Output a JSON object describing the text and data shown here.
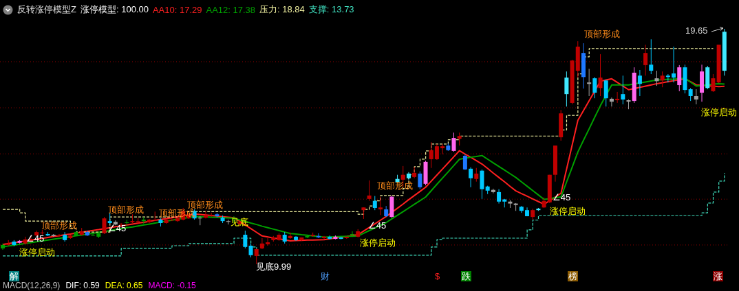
{
  "chart_data": {
    "type": "candlestick",
    "title": "反转涨停模型Z",
    "legend": "top left",
    "grid": "y",
    "tick_labels": false,
    "yticks": [
      {
        "value": 10.78,
        "label": null
      },
      {
        "value": 12.66,
        "label": null
      },
      {
        "value": 14.52,
        "label": null
      },
      {
        "value": 16.41,
        "label": null
      },
      {
        "value": 18.3,
        "label": null
      }
    ],
    "categories": [
      null,
      null,
      null,
      null,
      null,
      null,
      null,
      null,
      null,
      null,
      null,
      null,
      null,
      null,
      null,
      null,
      null,
      null,
      null,
      null,
      null,
      null,
      null,
      null,
      null,
      null,
      null,
      null,
      null,
      null,
      null,
      null,
      null,
      null,
      null,
      null,
      null,
      null,
      null,
      null,
      null,
      null,
      null,
      null,
      null,
      null,
      null,
      null,
      null,
      null,
      null,
      null,
      null,
      null,
      null,
      null,
      null,
      null,
      null,
      null,
      null,
      null,
      null,
      null,
      null,
      null,
      null,
      null,
      null,
      null,
      null,
      null,
      null,
      null,
      null,
      null,
      null,
      null,
      null,
      null,
      null,
      null,
      null,
      null,
      null,
      null,
      null,
      null,
      null,
      null,
      null,
      null,
      null,
      null,
      null,
      null,
      null,
      null,
      null,
      null,
      null,
      null,
      null,
      null,
      null,
      null,
      null,
      null,
      null,
      null,
      null,
      null,
      null,
      null,
      null,
      null,
      null,
      null,
      null,
      null,
      null,
      null,
      null,
      null,
      null,
      null,
      null,
      null,
      null
    ],
    "ohlc": [
      [
        10.78,
        10.84,
        10.58,
        10.64
      ],
      [
        10.78,
        10.98,
        10.75,
        10.84
      ],
      [
        10.92,
        10.98,
        10.73,
        10.78
      ],
      [
        10.87,
        10.98,
        10.84,
        10.95
      ],
      [
        10.84,
        11.12,
        10.81,
        11.01
      ],
      [
        10.92,
        11.17,
        10.89,
        11.03
      ],
      [
        11.17,
        11.37,
        11.15,
        11.31
      ],
      [
        11.26,
        11.4,
        11.2,
        11.29
      ],
      [
        11.23,
        11.31,
        11.15,
        11.17
      ],
      [
        11.2,
        11.23,
        11.12,
        11.15
      ],
      [
        11.15,
        11.23,
        11.12,
        11.17
      ],
      [
        11.2,
        11.31,
        10.92,
        10.98
      ],
      [
        11.06,
        11.2,
        11.03,
        11.17
      ],
      [
        11.31,
        11.37,
        11.15,
        11.17
      ],
      [
        11.2,
        11.48,
        11.17,
        11.34
      ],
      [
        11.31,
        11.37,
        11.15,
        11.17
      ],
      [
        11.2,
        11.26,
        11.15,
        11.17
      ],
      [
        11.26,
        11.31,
        11.06,
        11.12
      ],
      [
        11.26,
        11.93,
        11.23,
        11.87
      ],
      [
        11.76,
        12.1,
        11.65,
        11.68
      ],
      [
        11.73,
        11.79,
        11.59,
        11.62
      ],
      [
        11.62,
        11.68,
        11.59,
        11.65
      ],
      [
        11.71,
        11.82,
        11.54,
        11.68
      ],
      [
        11.71,
        12.04,
        11.68,
        11.76
      ],
      [
        11.73,
        11.9,
        11.62,
        11.76
      ],
      [
        11.82,
        11.93,
        11.65,
        11.76
      ],
      [
        11.71,
        11.85,
        11.68,
        11.82
      ],
      [
        11.79,
        12.15,
        11.76,
        11.82
      ],
      [
        11.82,
        11.87,
        11.54,
        11.68
      ],
      [
        11.68,
        11.85,
        11.65,
        11.82
      ],
      [
        11.79,
        11.87,
        11.76,
        11.82
      ],
      [
        11.76,
        11.96,
        11.73,
        11.9
      ],
      [
        11.82,
        12.3,
        11.79,
        12.18
      ],
      [
        11.87,
        12.1,
        11.85,
        12.01
      ],
      [
        12.18,
        12.24,
        11.82,
        11.87
      ],
      [
        11.9,
        11.96,
        11.59,
        11.87
      ],
      [
        11.9,
        12.18,
        11.87,
        12.01
      ],
      [
        11.99,
        12.1,
        11.93,
        12.01
      ],
      [
        12.04,
        12.1,
        11.9,
        11.96
      ],
      [
        11.9,
        11.99,
        11.68,
        11.76
      ],
      [
        11.76,
        11.82,
        11.62,
        11.73
      ],
      [
        11.82,
        11.96,
        11.68,
        11.79
      ],
      [
        11.65,
        11.76,
        11.54,
        11.71
      ],
      [
        11.2,
        11.37,
        10.64,
        10.7
      ],
      [
        10.75,
        10.84,
        10.27,
        10.36
      ],
      [
        10.33,
        10.64,
        9.99,
        10.61
      ],
      [
        10.64,
        11.06,
        10.61,
        10.84
      ],
      [
        10.81,
        11.06,
        10.75,
        10.89
      ],
      [
        10.98,
        11.15,
        10.92,
        11.09
      ],
      [
        10.98,
        11.26,
        10.95,
        11.2
      ],
      [
        11.2,
        11.31,
        10.84,
        10.92
      ],
      [
        11.06,
        11.29,
        11.03,
        11.15
      ],
      [
        11.12,
        11.15,
        10.95,
        10.98
      ],
      [
        10.98,
        11.09,
        10.95,
        11.09
      ],
      [
        11.15,
        11.2,
        11.06,
        11.09
      ],
      [
        11.15,
        11.29,
        11.12,
        11.2
      ],
      [
        11.15,
        11.26,
        11.06,
        11.09
      ],
      [
        11.06,
        11.15,
        11.03,
        11.12
      ],
      [
        11.12,
        11.17,
        11.01,
        11.03
      ],
      [
        11.03,
        11.17,
        11.01,
        11.12
      ],
      [
        11.09,
        11.12,
        11.01,
        11.03
      ],
      [
        11.06,
        11.12,
        11.03,
        11.12
      ],
      [
        11.23,
        11.34,
        11.12,
        11.2
      ],
      [
        11.12,
        11.43,
        11.09,
        11.34
      ],
      [
        12.21,
        12.32,
        11.85,
        12.32
      ],
      [
        12.67,
        13.43,
        12.59,
        12.81
      ],
      [
        12.59,
        12.79,
        12.21,
        12.3
      ],
      [
        12.24,
        12.76,
        12.01,
        12.32
      ],
      [
        12.24,
        12.38,
        11.93,
        11.96
      ],
      [
        11.93,
        12.81,
        11.9,
        12.76
      ],
      [
        13.35,
        13.66,
        13.32,
        13.49
      ],
      [
        13.46,
        14.02,
        13.18,
        13.66
      ],
      [
        13.52,
        13.77,
        13.46,
        13.71
      ],
      [
        13.57,
        13.99,
        13.52,
        13.74
      ],
      [
        13.71,
        13.8,
        13.07,
        13.15
      ],
      [
        13.29,
        14.24,
        13.23,
        14.19
      ],
      [
        14.3,
        15.0,
        13.94,
        14.67
      ],
      [
        14.3,
        14.92,
        14.27,
        14.83
      ],
      [
        14.75,
        14.92,
        14.5,
        14.83
      ],
      [
        14.86,
        14.95,
        14.64,
        14.67
      ],
      [
        14.64,
        15.39,
        14.61,
        15.17
      ],
      [
        15.14,
        15.39,
        14.86,
        15.25
      ],
      [
        14.44,
        14.5,
        13.86,
        13.88
      ],
      [
        13.91,
        13.97,
        13.15,
        13.52
      ],
      [
        13.49,
        13.94,
        13.38,
        13.71
      ],
      [
        13.83,
        13.88,
        12.67,
        13.07
      ],
      [
        13.18,
        13.21,
        12.87,
        13.01
      ],
      [
        13.04,
        13.09,
        12.9,
        12.95
      ],
      [
        12.95,
        13.07,
        12.48,
        12.56
      ],
      [
        12.65,
        12.67,
        12.32,
        12.56
      ],
      [
        12.56,
        12.62,
        12.3,
        12.48
      ],
      [
        12.48,
        12.5,
        12.18,
        12.42
      ],
      [
        12.35,
        12.38,
        12.1,
        12.18
      ],
      [
        12.21,
        12.32,
        11.96,
        11.96
      ],
      [
        11.93,
        12.27,
        11.82,
        12.21
      ],
      [
        12.21,
        12.3,
        12.18,
        12.27
      ],
      [
        12.32,
        12.73,
        12.3,
        12.59
      ],
      [
        12.53,
        13.66,
        12.5,
        13.66
      ],
      [
        13.66,
        14.86,
        13.38,
        14.86
      ],
      [
        15.2,
        16.32,
        15.06,
        16.18
      ],
      [
        16.97,
        17.9,
        16.46,
        17.65
      ],
      [
        16.61,
        18.38,
        16.55,
        18.35
      ],
      [
        17.93,
        19.14,
        17.65,
        18.92
      ],
      [
        18.66,
        19.06,
        17.2,
        17.67
      ],
      [
        17.45,
        18.01,
        16.89,
        17.39
      ],
      [
        17.62,
        17.67,
        16.8,
        17.03
      ],
      [
        17.22,
        18.61,
        16.89,
        17.65
      ],
      [
        17.53,
        17.56,
        16.46,
        16.8
      ],
      [
        16.78,
        16.83,
        16.46,
        16.66
      ],
      [
        16.72,
        17.06,
        16.61,
        16.78
      ],
      [
        16.97,
        17.73,
        16.55,
        16.75
      ],
      [
        16.72,
        16.75,
        16.35,
        16.66
      ],
      [
        16.69,
        18.07,
        16.61,
        17.85
      ],
      [
        17.73,
        17.96,
        16.89,
        17.39
      ],
      [
        18.16,
        19.0,
        17.73,
        18.66
      ],
      [
        18.18,
        19.22,
        17.79,
        17.93
      ],
      [
        17.62,
        17.93,
        17.31,
        17.5
      ],
      [
        17.53,
        17.9,
        17.25,
        17.73
      ],
      [
        17.73,
        17.79,
        17.45,
        17.67
      ],
      [
        17.82,
        18.92,
        17.45,
        17.65
      ],
      [
        17.34,
        18.16,
        17.09,
        18.07
      ],
      [
        18.07,
        18.18,
        17.0,
        17.14
      ],
      [
        17.17,
        17.22,
        16.69,
        16.89
      ],
      [
        16.89,
        17.17,
        16.55,
        16.75
      ],
      [
        17.03,
        18.18,
        16.66,
        17.9
      ],
      [
        17.22,
        18.13,
        17.17,
        18.07
      ],
      [
        17.09,
        17.79,
        17.06,
        17.62
      ],
      [
        17.45,
        19.0,
        17.42,
        19.0
      ],
      [
        17.93,
        19.65,
        17.73,
        19.53
      ]
    ],
    "colors": [
      "#00a000",
      "#c00000",
      "#00c8ff",
      "#ff66ee",
      "#c00000",
      "#c00000",
      "#c00000",
      "#c00000",
      "#00c8ff",
      "#a0a0a0",
      "#c00000",
      "#00c8ff",
      "#c00000",
      "#00a000",
      "#c00000",
      "#1e78ff",
      "#00a000",
      "#00a000",
      "#c00000",
      "#00c8ff",
      "#a0a0a0",
      "#c00000",
      "#00a000",
      "#c00000",
      "#c00000",
      "#00a000",
      "#c00000",
      "#c00000",
      "#00c8ff",
      "#c00000",
      "#c00000",
      "#c00000",
      "#c00000",
      "#c00000",
      "#00c8ff",
      "#a0a0a0",
      "#c00000",
      "#c00000",
      "#1e78ff",
      "#00c8ff",
      "#a0a0a0",
      "#00a000",
      "#c00000",
      "#00c8ff",
      "#00c8ff",
      "#c00000",
      "#c00000",
      "#c00000",
      "#c00000",
      "#c00000",
      "#00c8ff",
      "#c00000",
      "#00c8ff",
      "#c00000",
      "#00a000",
      "#c00000",
      "#1e78ff",
      "#c00000",
      "#00c8ff",
      "#ff66ee",
      "#00c8ff",
      "#c00000",
      "#00a000",
      "#c00000",
      "#c00000",
      "#c00000",
      "#00c8ff",
      "#c00000",
      "#1e78ff",
      "#ff66ee",
      "#40e8ff",
      "#c00000",
      "#40e8ff",
      "#c00000",
      "#1e78ff",
      "#ff66ee",
      "#c00000",
      "#c00000",
      "#c00000",
      "#1e78ff",
      "#ff66ee",
      "#c00000",
      "#1e78ff",
      "#00c8ff",
      "#c00000",
      "#00c8ff",
      "#00c8ff",
      "#a0a0a0",
      "#00c8ff",
      "#00c8ff",
      "#a0a0a0",
      "#a0a0a0",
      "#00c8ff",
      "#00c8ff",
      "#c00000",
      "#40e8ff",
      "#c00000",
      "#c00000",
      "#c00000",
      "#c00000",
      "#40e8ff",
      "#c00000",
      "#c00000",
      "#1e78ff",
      "#a0a0a0",
      "#00c8ff",
      "#c00000",
      "#00c8ff",
      "#a0a0a0",
      "#c00000",
      "#00c8ff",
      "#a0a0a0",
      "#ff66ee",
      "#00c8ff",
      "#c00000",
      "#00c8ff",
      "#a0a0a0",
      "#c00000",
      "#00c8ff",
      "#00c8ff",
      "#ff66ee",
      "#00c8ff",
      "#00c8ff",
      "#a0a0a0",
      "#ff66ee",
      "#40e8ff",
      "#c00000",
      "#c00000",
      "#40e8ff"
    ],
    "series": [
      {
        "name": "AA10: 17.29",
        "type": "line",
        "color": "#ff2020",
        "line_style": "solid",
        "values": [
          10.8,
          10.84,
          10.87,
          10.91,
          10.94,
          10.98,
          11.02,
          11.05,
          11.09,
          11.13,
          11.16,
          11.2,
          11.23,
          11.27,
          11.31,
          11.34,
          11.38,
          11.41,
          11.45,
          11.49,
          11.53,
          11.56,
          11.6,
          11.64,
          11.68,
          11.71,
          11.75,
          11.79,
          11.83,
          11.86,
          11.9,
          11.94,
          11.98,
          12.01,
          12.05,
          12.03,
          12.01,
          11.99,
          11.96,
          11.94,
          11.92,
          11.9,
          11.75,
          11.6,
          11.45,
          11.3,
          11.15,
          11.11,
          11.07,
          11.03,
          10.99,
          10.95,
          10.96,
          10.97,
          10.98,
          10.98,
          10.99,
          11.0,
          11.03,
          11.07,
          11.1,
          11.13,
          11.17,
          11.2,
          11.35,
          11.5,
          11.65,
          11.8,
          11.95,
          12.12,
          12.29,
          12.46,
          12.64,
          12.81,
          12.98,
          13.15,
          13.4,
          13.65,
          13.9,
          14.15,
          14.4,
          14.65,
          14.51,
          14.38,
          14.24,
          14.1,
          13.92,
          13.73,
          13.55,
          13.37,
          13.18,
          13.0,
          12.89,
          12.78,
          12.67,
          12.56,
          12.45,
          12.6,
          12.75,
          12.9,
          13.9,
          14.9,
          15.9,
          16.3,
          16.7,
          17.1,
          17.5,
          17.55,
          17.6,
          17.45,
          17.3,
          17.15,
          17.2,
          17.25,
          17.3,
          17.35,
          17.4,
          17.44,
          17.48,
          17.52,
          17.56,
          17.6,
          17.48,
          17.35,
          null,
          17.31,
          17.3,
          17.28,
          17.29
        ]
      },
      {
        "name": "AA12: 17.38",
        "type": "line",
        "color": "#00a000",
        "line_style": "solid",
        "values": [
          10.7,
          10.74,
          10.77,
          10.81,
          10.84,
          10.88,
          10.91,
          10.95,
          10.98,
          11.02,
          11.05,
          11.09,
          11.12,
          11.16,
          11.19,
          11.23,
          11.26,
          11.3,
          11.33,
          11.37,
          11.41,
          11.45,
          11.49,
          11.52,
          11.56,
          11.6,
          11.64,
          11.68,
          11.72,
          11.76,
          11.8,
          11.84,
          11.87,
          11.91,
          11.95,
          11.94,
          11.93,
          11.92,
          11.91,
          11.9,
          11.89,
          11.88,
          11.81,
          11.75,
          11.68,
          11.62,
          11.55,
          11.49,
          11.43,
          11.37,
          11.31,
          11.25,
          11.23,
          11.2,
          11.18,
          11.15,
          11.13,
          11.1,
          11.11,
          11.12,
          11.13,
          11.13,
          11.14,
          11.15,
          11.26,
          11.37,
          11.48,
          11.59,
          11.7,
          11.85,
          12.0,
          12.15,
          12.3,
          12.45,
          12.6,
          12.75,
          13.01,
          13.27,
          13.53,
          13.78,
          14.04,
          14.3,
          14.34,
          14.38,
          14.41,
          14.45,
          14.3,
          14.15,
          14.0,
          13.85,
          13.7,
          13.55,
          13.37,
          13.19,
          13.01,
          12.83,
          12.65,
          12.68,
          12.72,
          12.75,
          13.37,
          13.98,
          14.6,
          15.08,
          15.55,
          16.03,
          16.5,
          null,
          17.35,
          17.35,
          17.35,
          17.35,
          17.39,
          17.43,
          17.47,
          17.51,
          17.55,
          17.56,
          17.58,
          17.59,
          17.61,
          17.62,
          17.46,
          17.3,
          17.33,
          17.35,
          17.38,
          17.4,
          17.38
        ]
      },
      {
        "name": "压力: 18.84",
        "type": "step",
        "color": "#f0f0a0",
        "line_style": "dashed",
        "values": [
          12.24,
          12.24,
          12.24,
          12.1,
          11.76,
          11.76,
          11.76,
          11.76,
          11.76,
          11.76,
          11.76,
          11.76,
          11.45,
          11.31,
          11.31,
          11.31,
          11.31,
          11.31,
          11.31,
          11.93,
          11.93,
          11.93,
          11.93,
          11.93,
          11.93,
          11.93,
          11.93,
          11.93,
          11.93,
          11.93,
          11.93,
          11.93,
          12.15,
          12.15,
          12.15,
          12.15,
          12.15,
          12.15,
          12.15,
          12.15,
          12.15,
          12.15,
          12.15,
          12.15,
          12.15,
          12.15,
          12.15,
          12.15,
          12.15,
          12.15,
          12.15,
          12.15,
          12.15,
          12.15,
          12.15,
          12.15,
          12.15,
          12.15,
          12.15,
          12.15,
          12.15,
          12.15,
          12.15,
          12.04,
          12.24,
          12.38,
          12.59,
          12.81,
          12.81,
          12.81,
          12.81,
          13.1,
          13.66,
          13.99,
          14.3,
          14.64,
          14.92,
          14.92,
          14.92,
          15.1,
          15.1,
          15.25,
          15.25,
          15.25,
          15.25,
          15.25,
          15.25,
          15.25,
          15.25,
          15.25,
          15.25,
          15.25,
          15.25,
          15.25,
          15.25,
          15.25,
          15.25,
          15.25,
          15.25,
          15.5,
          16.1,
          null,
          17.8,
          18.5,
          18.84,
          18.84,
          18.84,
          18.84,
          18.84,
          18.84,
          18.84,
          18.84,
          18.84,
          18.84,
          18.84,
          18.84,
          18.84,
          18.84,
          18.84,
          18.84,
          18.84,
          18.84,
          18.84,
          18.84,
          18.84,
          18.84,
          18.84,
          null,
          null
        ]
      },
      {
        "name": "支撑: 13.73",
        "type": "step",
        "color": "#40e0c0",
        "line_style": "dashed",
        "values": [
          10.33,
          10.33,
          10.33,
          10.33,
          10.33,
          10.33,
          10.33,
          10.33,
          10.33,
          10.33,
          10.33,
          10.33,
          10.33,
          10.33,
          10.33,
          10.33,
          10.33,
          10.33,
          10.33,
          10.33,
          10.33,
          10.64,
          10.64,
          10.64,
          10.64,
          10.64,
          10.64,
          10.64,
          10.64,
          10.64,
          10.75,
          10.75,
          10.75,
          10.84,
          10.84,
          10.84,
          10.84,
          10.84,
          10.84,
          10.84,
          10.84,
          11.06,
          11.06,
          11.06,
          10.7,
          10.36,
          10.36,
          10.36,
          10.36,
          10.36,
          10.36,
          10.36,
          10.36,
          10.36,
          10.36,
          10.36,
          10.36,
          10.36,
          10.36,
          10.36,
          10.36,
          10.36,
          10.36,
          10.36,
          10.36,
          10.36,
          10.36,
          10.36,
          10.36,
          10.36,
          10.36,
          10.36,
          10.36,
          10.36,
          10.36,
          10.36,
          10.7,
          11.0,
          11.06,
          11.06,
          11.06,
          11.06,
          11.06,
          11.06,
          11.06,
          11.06,
          11.06,
          11.06,
          11.06,
          11.06,
          11.06,
          11.06,
          11.06,
          11.4,
          11.8,
          11.99,
          11.99,
          11.99,
          11.99,
          11.99,
          11.99,
          11.99,
          11.99,
          11.99,
          11.99,
          11.99,
          11.99,
          11.99,
          11.99,
          11.99,
          11.99,
          11.99,
          11.99,
          11.99,
          11.99,
          11.99,
          11.99,
          11.99,
          11.99,
          11.99,
          11.99,
          11.99,
          11.99,
          11.99,
          12.1,
          12.5,
          12.95,
          13.4,
          13.73
        ]
      }
    ],
    "annotations": [
      "涨停模型: 100.00",
      "顶部形成",
      "顶部形成",
      "顶部形成",
      "顶部形成",
      "顶部形成",
      "顶部形成",
      "涨停启动",
      "涨停启动",
      "涨停启动",
      "涨停启动",
      "∠45",
      "∠45",
      "∠45",
      "∠45",
      "见底",
      "见底",
      "9.99",
      "19.65",
      "MACD(12,26,9)",
      "DIF: 0.59",
      "DEA: 0.65",
      "MACD: -0.15",
      "解",
      "财",
      "$",
      "跌",
      "榜",
      "涨"
    ]
  }
}
